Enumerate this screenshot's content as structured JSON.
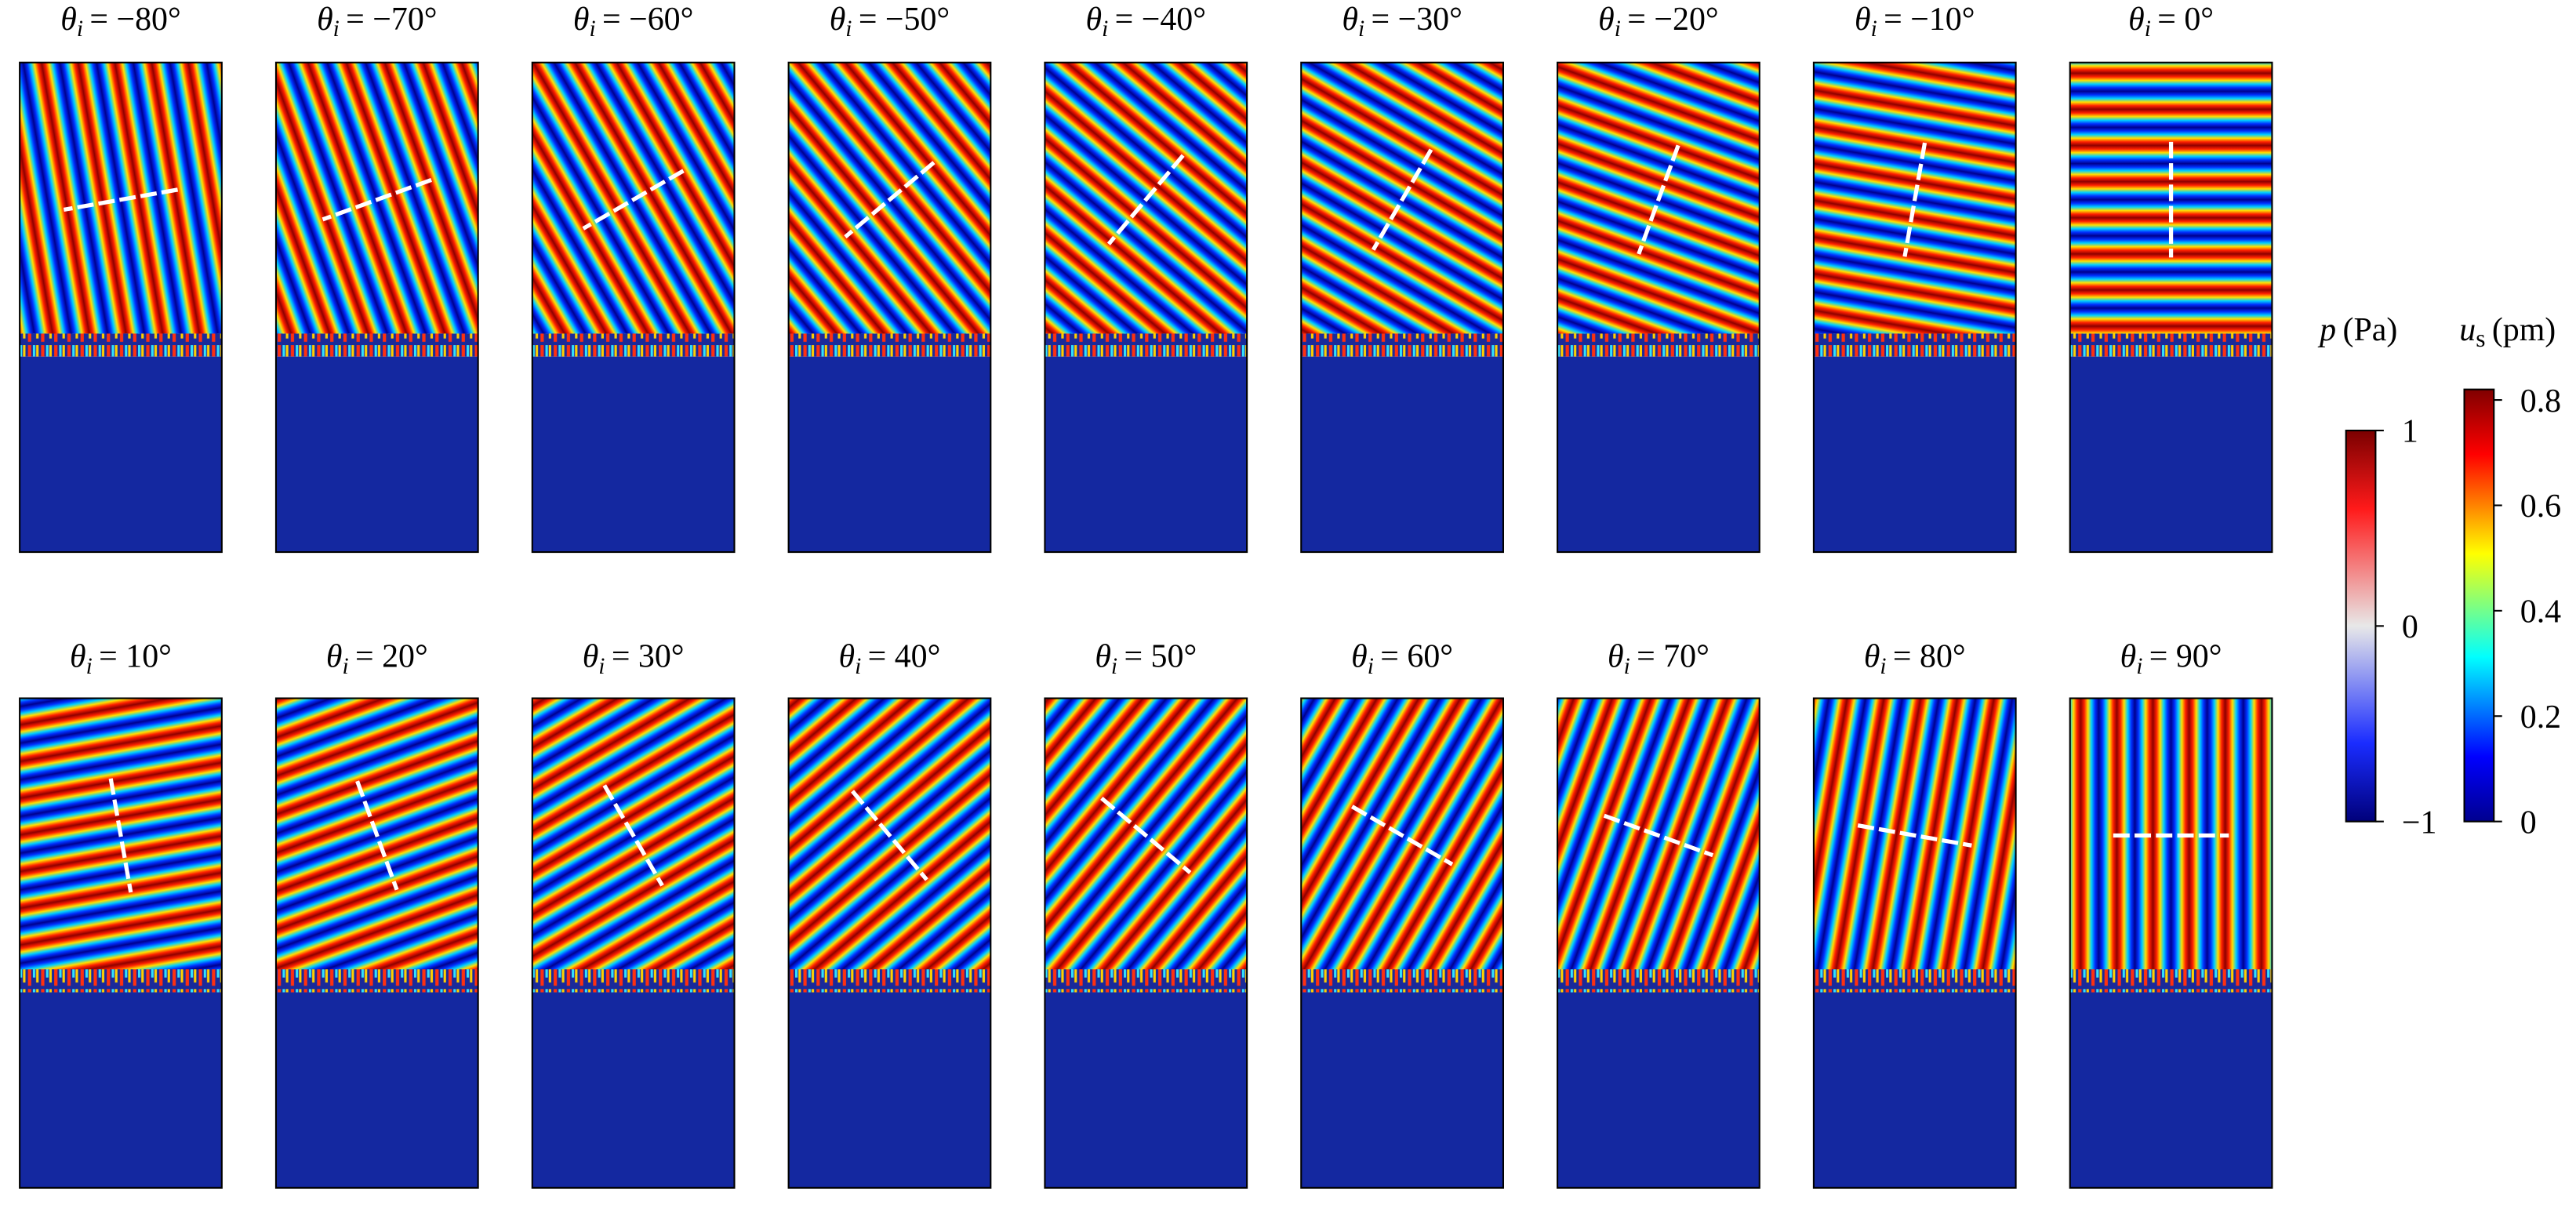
{
  "panels": [
    {
      "symbol": "θ",
      "subscript": "i",
      "value_text": "= −80°",
      "theta_deg": -80
    },
    {
      "symbol": "θ",
      "subscript": "i",
      "value_text": "= −70°",
      "theta_deg": -70
    },
    {
      "symbol": "θ",
      "subscript": "i",
      "value_text": "= −60°",
      "theta_deg": -60
    },
    {
      "symbol": "θ",
      "subscript": "i",
      "value_text": "= −50°",
      "theta_deg": -50
    },
    {
      "symbol": "θ",
      "subscript": "i",
      "value_text": "= −40°",
      "theta_deg": -40
    },
    {
      "symbol": "θ",
      "subscript": "i",
      "value_text": "= −30°",
      "theta_deg": -30
    },
    {
      "symbol": "θ",
      "subscript": "i",
      "value_text": "= −20°",
      "theta_deg": -20
    },
    {
      "symbol": "θ",
      "subscript": "i",
      "value_text": "= −10°",
      "theta_deg": -10
    },
    {
      "symbol": "θ",
      "subscript": "i",
      "value_text": "= 0°",
      "theta_deg": 0
    },
    {
      "symbol": "θ",
      "subscript": "i",
      "value_text": "= 10°",
      "theta_deg": 10
    },
    {
      "symbol": "θ",
      "subscript": "i",
      "value_text": "= 20°",
      "theta_deg": 20
    },
    {
      "symbol": "θ",
      "subscript": "i",
      "value_text": "= 30°",
      "theta_deg": 30
    },
    {
      "symbol": "θ",
      "subscript": "i",
      "value_text": "= 40°",
      "theta_deg": 40
    },
    {
      "symbol": "θ",
      "subscript": "i",
      "value_text": "= 50°",
      "theta_deg": 50
    },
    {
      "symbol": "θ",
      "subscript": "i",
      "value_text": "= 60°",
      "theta_deg": 60
    },
    {
      "symbol": "θ",
      "subscript": "i",
      "value_text": "= 70°",
      "theta_deg": 70
    },
    {
      "symbol": "θ",
      "subscript": "i",
      "value_text": "= 80°",
      "theta_deg": 80
    },
    {
      "symbol": "θ",
      "subscript": "i",
      "value_text": "= 90°",
      "theta_deg": 90
    }
  ],
  "colorbars": [
    {
      "symbol": "p",
      "unit": "(Pa)",
      "lim": [
        -1,
        1
      ],
      "ticks": [
        1,
        0,
        {
          "value": -1,
          "label": "−1"
        }
      ]
    },
    {
      "symbol": "u",
      "subscript": "s",
      "unit": "(pm)",
      "lim": [
        0,
        0.82
      ],
      "ticks": [
        0.8,
        0.6,
        0.4,
        0.2,
        0
      ]
    }
  ]
}
